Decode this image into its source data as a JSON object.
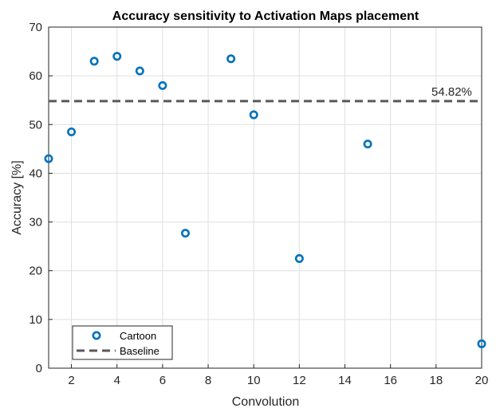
{
  "chart_data": {
    "type": "scatter",
    "title": "Accuracy sensitivity to Activation Maps placement",
    "xlabel": "Convolution",
    "ylabel": "Accuracy [%]",
    "xlim": [
      1,
      20
    ],
    "ylim": [
      0,
      70
    ],
    "xticks": [
      2,
      4,
      6,
      8,
      10,
      12,
      14,
      16,
      18,
      20
    ],
    "yticks": [
      0,
      10,
      20,
      30,
      40,
      50,
      60,
      70
    ],
    "grid": true,
    "legend_position": "bottom-left",
    "series": [
      {
        "name": "Cartoon",
        "marker": "circle",
        "color": "#0072BD",
        "x": [
          1,
          2,
          3,
          4,
          5,
          6,
          7,
          9,
          10,
          12,
          15,
          20
        ],
        "y": [
          43,
          48.5,
          63,
          64,
          61,
          58,
          27.7,
          63.5,
          52,
          22.5,
          46,
          5
        ]
      },
      {
        "name": "Baseline",
        "style": "dashed",
        "color": "#595959",
        "y_value": 54.82
      }
    ],
    "annotations": [
      {
        "text": "54.82%",
        "x": 19,
        "y": 54.82
      }
    ]
  }
}
